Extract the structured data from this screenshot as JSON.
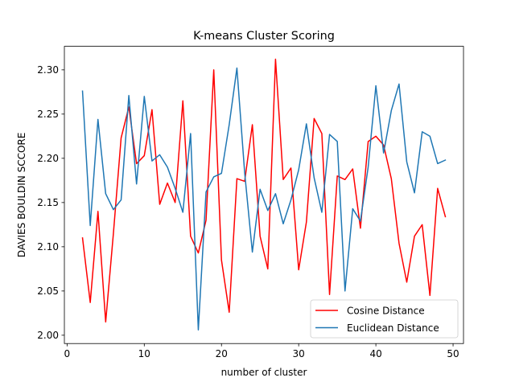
{
  "chart_data": {
    "type": "line",
    "title": "K-means Cluster Scoring",
    "xlabel": "number of cluster",
    "ylabel": "DAVIES BOULDIN SCCORE",
    "xlim": [
      -0.35,
      51.35
    ],
    "ylim": [
      1.9906,
      2.3266
    ],
    "xticks": [
      0,
      10,
      20,
      30,
      40,
      50
    ],
    "yticks": [
      2.0,
      2.05,
      2.1,
      2.15,
      2.2,
      2.25,
      2.3
    ],
    "xtick_labels": [
      "0",
      "10",
      "20",
      "30",
      "40",
      "50"
    ],
    "ytick_labels": [
      "2.00",
      "2.05",
      "2.10",
      "2.15",
      "2.20",
      "2.25",
      "2.30"
    ],
    "grid": false,
    "legend_position": "lower-right",
    "x": [
      2,
      3,
      4,
      5,
      6,
      7,
      8,
      9,
      10,
      11,
      12,
      13,
      14,
      15,
      16,
      17,
      18,
      19,
      20,
      21,
      22,
      23,
      24,
      25,
      26,
      27,
      28,
      29,
      30,
      31,
      32,
      33,
      34,
      35,
      36,
      37,
      38,
      39,
      40,
      41,
      42,
      43,
      44,
      45,
      46,
      47,
      48,
      49
    ],
    "series": [
      {
        "name": "Cosine Distance",
        "color": "#ff0000",
        "values": [
          2.11,
          2.037,
          2.14,
          2.015,
          2.115,
          2.223,
          2.258,
          2.194,
          2.203,
          2.255,
          2.148,
          2.172,
          2.15,
          2.265,
          2.112,
          2.093,
          2.13,
          2.3,
          2.085,
          2.026,
          2.177,
          2.174,
          2.238,
          2.112,
          2.075,
          2.312,
          2.176,
          2.189,
          2.074,
          2.128,
          2.245,
          2.228,
          2.046,
          2.18,
          2.176,
          2.188,
          2.121,
          2.219,
          2.225,
          2.215,
          2.177,
          2.104,
          2.06,
          2.112,
          2.125,
          2.045,
          2.166,
          2.134
        ]
      },
      {
        "name": "Euclidean Distance",
        "color": "#1f77b4",
        "values": [
          2.276,
          2.124,
          2.244,
          2.16,
          2.142,
          2.153,
          2.271,
          2.171,
          2.27,
          2.197,
          2.204,
          2.19,
          2.166,
          2.139,
          2.228,
          2.006,
          2.162,
          2.179,
          2.183,
          2.238,
          2.302,
          2.184,
          2.094,
          2.165,
          2.141,
          2.16,
          2.126,
          2.153,
          2.187,
          2.239,
          2.178,
          2.139,
          2.227,
          2.219,
          2.05,
          2.143,
          2.129,
          2.19,
          2.282,
          2.206,
          2.254,
          2.284,
          2.196,
          2.161,
          2.23,
          2.225,
          2.194,
          2.198
        ]
      }
    ]
  }
}
